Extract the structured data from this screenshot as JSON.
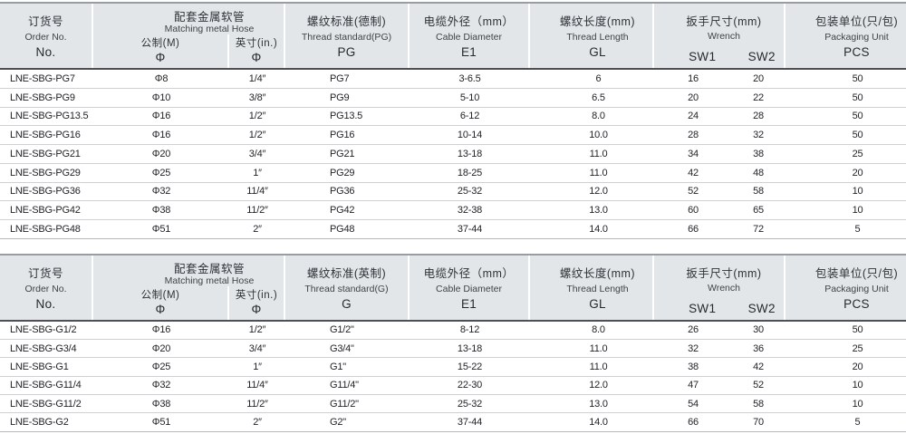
{
  "colors": {
    "header_bg": "#e3e6e9",
    "table_top_border": "#979da3",
    "header_rule": "#4d5156",
    "row_line": "#cdd1d4",
    "body_text": "#212427"
  },
  "tables": [
    {
      "name": "pg-thread-table",
      "header": {
        "order": {
          "zh": "订货号",
          "en": "Order No.",
          "code": "No."
        },
        "hose": {
          "zh": "配套金属软管",
          "en": "Matching metal Hose"
        },
        "hose_metric": {
          "zh": "公制(M)",
          "code": "Φ"
        },
        "hose_inch": {
          "zh": "英寸(in.)",
          "code": "Φ"
        },
        "thread": {
          "zh": "螺纹标准(德制)",
          "en": "Thread standard(PG)",
          "code": "PG"
        },
        "cable": {
          "zh": "电缆外径（mm）",
          "en": "Cable Diameter",
          "code": "E1"
        },
        "length": {
          "zh": "螺纹长度(mm)",
          "en": "Thread Length",
          "code": "GL"
        },
        "wrench": {
          "zh": "扳手尺寸(mm)",
          "en": "Wrench",
          "sw1": "SW1",
          "sw2": "SW2"
        },
        "packaging": {
          "zh": "包装单位(只/包)",
          "en": "Packaging Unit",
          "code": "PCS"
        }
      },
      "rows": [
        [
          "LNE-SBG-PG7",
          "Φ8",
          "1/4″",
          "PG7",
          "3-6.5",
          "6",
          "16",
          "20",
          "50"
        ],
        [
          "LNE-SBG-PG9",
          "Φ10",
          "3/8″",
          "PG9",
          "5-10",
          "6.5",
          "20",
          "22",
          "50"
        ],
        [
          "LNE-SBG-PG13.5",
          "Φ16",
          "1/2″",
          "PG13.5",
          "6-12",
          "8.0",
          "24",
          "28",
          "50"
        ],
        [
          "LNE-SBG-PG16",
          "Φ16",
          "1/2″",
          "PG16",
          "10-14",
          "10.0",
          "28",
          "32",
          "50"
        ],
        [
          "LNE-SBG-PG21",
          "Φ20",
          "3/4″",
          "PG21",
          "13-18",
          "11.0",
          "34",
          "38",
          "25"
        ],
        [
          "LNE-SBG-PG29",
          "Φ25",
          "1″",
          "PG29",
          "18-25",
          "11.0",
          "42",
          "48",
          "20"
        ],
        [
          "LNE-SBG-PG36",
          "Φ32",
          "11/4″",
          "PG36",
          "25-32",
          "12.0",
          "52",
          "58",
          "10"
        ],
        [
          "LNE-SBG-PG42",
          "Φ38",
          "11/2″",
          "PG42",
          "32-38",
          "13.0",
          "60",
          "65",
          "10"
        ],
        [
          "LNE-SBG-PG48",
          "Φ51",
          "2″",
          "PG48",
          "37-44",
          "14.0",
          "66",
          "72",
          "5"
        ]
      ]
    },
    {
      "name": "g-thread-table",
      "header": {
        "order": {
          "zh": "订货号",
          "en": "Order No.",
          "code": "No."
        },
        "hose": {
          "zh": "配套金属软管",
          "en": "Matching metal Hose"
        },
        "hose_metric": {
          "zh": "公制(M)",
          "code": "Φ"
        },
        "hose_inch": {
          "zh": "英寸(in.)",
          "code": "Φ"
        },
        "thread": {
          "zh": "螺纹标准(英制)",
          "en": "Thread standard(G)",
          "code": "G"
        },
        "cable": {
          "zh": "电缆外径（mm）",
          "en": "Cable Diameter",
          "code": "E1"
        },
        "length": {
          "zh": "螺纹长度(mm)",
          "en": "Thread Length",
          "code": "GL"
        },
        "wrench": {
          "zh": "扳手尺寸(mm)",
          "en": "Wrench",
          "sw1": "SW1",
          "sw2": "SW2"
        },
        "packaging": {
          "zh": "包装单位(只/包)",
          "en": "Packaging Unit",
          "code": "PCS"
        }
      },
      "rows": [
        [
          "LNE-SBG-G1/2",
          "Φ16",
          "1/2″",
          "G1/2\"",
          "8-12",
          "8.0",
          "26",
          "30",
          "50"
        ],
        [
          "LNE-SBG-G3/4",
          "Φ20",
          "3/4″",
          "G3/4\"",
          "13-18",
          "11.0",
          "32",
          "36",
          "25"
        ],
        [
          "LNE-SBG-G1",
          "Φ25",
          "1″",
          "G1\"",
          "15-22",
          "11.0",
          "38",
          "42",
          "20"
        ],
        [
          "LNE-SBG-G11/4",
          "Φ32",
          "11/4″",
          "G11/4\"",
          "22-30",
          "12.0",
          "47",
          "52",
          "10"
        ],
        [
          "LNE-SBG-G11/2",
          "Φ38",
          "11/2″",
          "G11/2\"",
          "25-32",
          "13.0",
          "54",
          "58",
          "10"
        ],
        [
          "LNE-SBG-G2",
          "Φ51",
          "2″",
          "G2\"",
          "37-44",
          "14.0",
          "66",
          "70",
          "5"
        ]
      ]
    }
  ]
}
